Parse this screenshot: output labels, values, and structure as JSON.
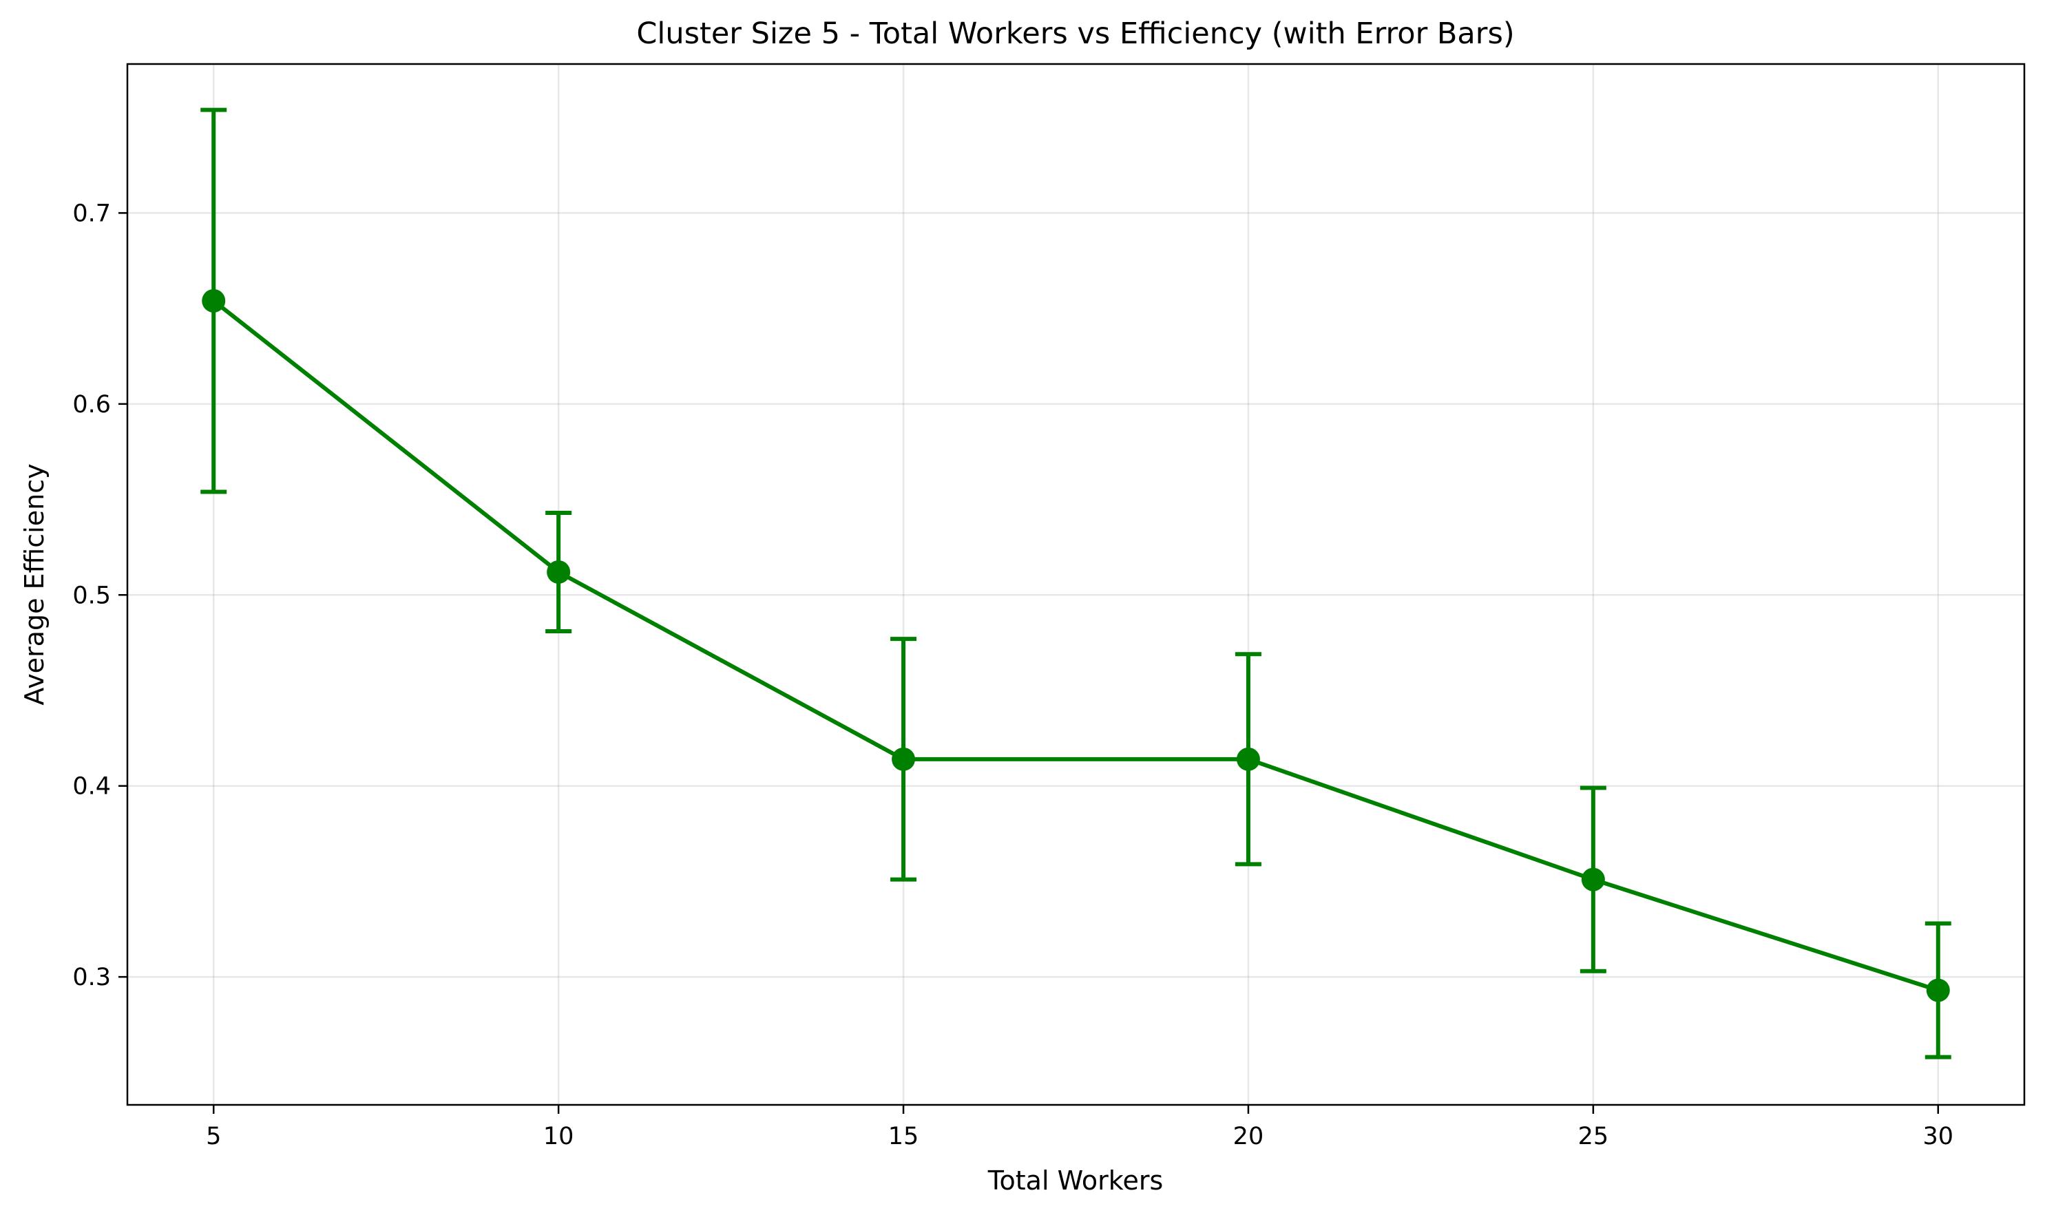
{
  "chart_data": {
    "type": "line",
    "title": "Cluster Size 5 - Total Workers vs Efficiency (with Error Bars)",
    "xlabel": "Total Workers",
    "ylabel": "Average Efficiency",
    "xlim": [
      3.75,
      31.25
    ],
    "ylim": [
      0.233,
      0.778
    ],
    "x_ticks": [
      5,
      10,
      15,
      20,
      25,
      30
    ],
    "y_ticks": [
      0.3,
      0.4,
      0.5,
      0.6,
      0.7
    ],
    "grid": true,
    "legend": false,
    "color": "#008000",
    "series": [
      {
        "x": [
          5,
          10,
          15,
          20,
          25,
          30
        ],
        "y": [
          0.654,
          0.512,
          0.414,
          0.414,
          0.351,
          0.293
        ],
        "error": [
          0.1,
          0.031,
          0.063,
          0.055,
          0.048,
          0.035
        ]
      }
    ]
  }
}
